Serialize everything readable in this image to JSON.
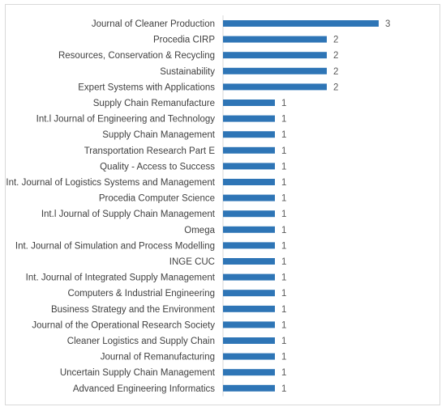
{
  "chart_data": {
    "type": "bar",
    "orientation": "horizontal",
    "title": "",
    "xlabel": "",
    "ylabel": "",
    "categories": [
      "Journal of Cleaner Production",
      "Procedia CIRP",
      "Resources, Conservation & Recycling",
      "Sustainability",
      "Expert Systems with Applications",
      "Supply Chain Remanufacture",
      "Int.l Journal of Engineering and Technology",
      "Supply Chain Management",
      "Transportation Research Part E",
      "Quality - Access to Success",
      "Int. Journal of Logistics Systems and Management",
      "Procedia Computer Science",
      "Int.l Journal of Supply Chain Management",
      "Omega",
      "Int. Journal of Simulation and Process Modelling",
      "INGE CUC",
      "Int. Journal of Integrated Supply Management",
      "Computers & Industrial Engineering",
      "Business Strategy and the Environment",
      "Journal of the Operational Research Society",
      "Cleaner Logistics and Supply Chain",
      "Journal of Remanufacturing",
      "Uncertain Supply Chain Management",
      "Advanced Engineering Informatics"
    ],
    "values": [
      3,
      2,
      2,
      2,
      2,
      1,
      1,
      1,
      1,
      1,
      1,
      1,
      1,
      1,
      1,
      1,
      1,
      1,
      1,
      1,
      1,
      1,
      1,
      1
    ],
    "xlim": [
      0,
      3
    ],
    "grid": false,
    "legend": "none",
    "data_labels": true,
    "bar_color": "#2e75b6"
  }
}
